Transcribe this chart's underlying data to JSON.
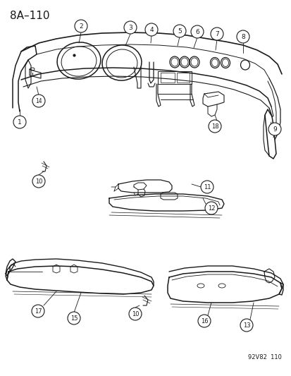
{
  "title": "8A–110",
  "footer": "92V82  110",
  "bg": "#ffffff",
  "lc": "#1a1a1a",
  "title_fs": 11,
  "footer_fs": 6,
  "label_fs": 6.5,
  "circle_r": 0.018
}
